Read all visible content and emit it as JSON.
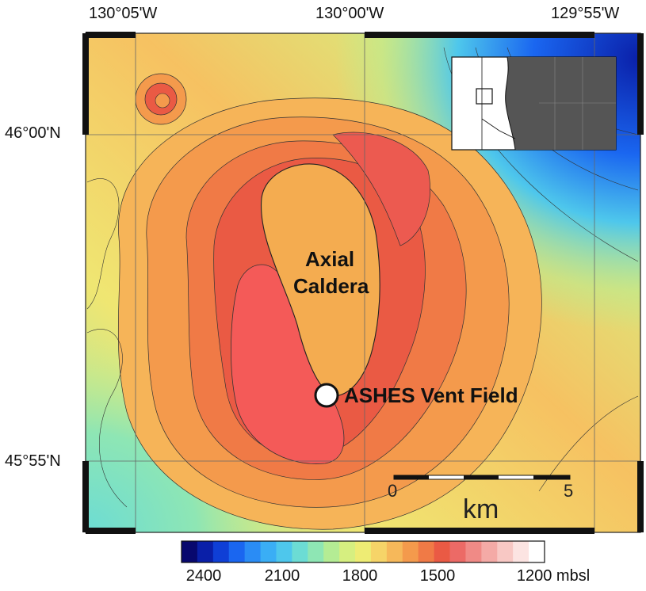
{
  "longitude_labels": [
    "130°05'W",
    "130°00'W",
    "129°55'W"
  ],
  "latitude_labels": [
    "46°00'N",
    "45°55'N"
  ],
  "caldera_label_line1": "Axial",
  "caldera_label_line2": "Caldera",
  "vent_label": "ASHES Vent Field",
  "scale_bar": {
    "start": "0",
    "end": "5",
    "unit": "km"
  },
  "colorbar": {
    "labels": [
      "2400",
      "2100",
      "1800",
      "1500",
      "1200 mbsl"
    ],
    "colors": [
      "#08086e",
      "#0a1fa8",
      "#0f3fd6",
      "#1a66f0",
      "#2a8cf5",
      "#3aaef5",
      "#4ec7ec",
      "#6cdcd4",
      "#8ee6b4",
      "#b4ec94",
      "#d6ef80",
      "#eeec74",
      "#f6d468",
      "#f6b85a",
      "#f49a4c",
      "#f07a46",
      "#ea5a44",
      "#ec6a66",
      "#f08a86",
      "#f4aaa6",
      "#f8c8c4",
      "#fce4e2",
      "#ffffff"
    ]
  },
  "colors": {
    "deep": "#1028c8",
    "mid": "#f6b85a",
    "summit": "#f05a54",
    "caldera_floor": "#f4a648"
  }
}
